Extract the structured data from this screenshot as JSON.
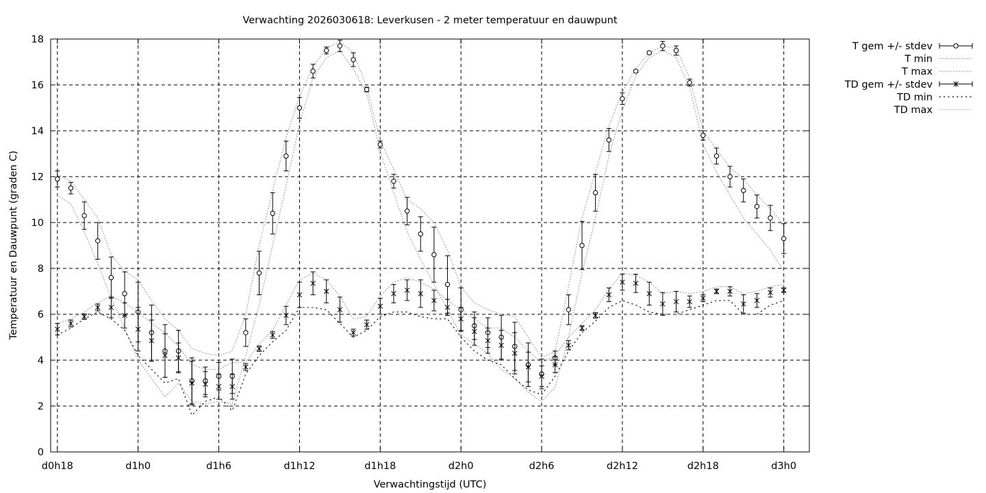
{
  "chart_data": {
    "type": "line",
    "title": "Verwachting 2026030618: Leverkusen - 2 meter temperatuur en dauwpunt",
    "xlabel": "Verwachtingstijd (UTC)",
    "ylabel": "Temperatuur en Dauwpunt (graden C)",
    "xlim": [
      17.5,
      73.9
    ],
    "ylim": [
      0,
      18
    ],
    "grid": true,
    "legend_position": "outside-top-right",
    "x_ticks": [
      {
        "x": 18,
        "label": "d0h18"
      },
      {
        "x": 24,
        "label": "d1h0"
      },
      {
        "x": 30,
        "label": "d1h6"
      },
      {
        "x": 36,
        "label": "d1h12"
      },
      {
        "x": 42,
        "label": "d1h18"
      },
      {
        "x": 48,
        "label": "d2h0"
      },
      {
        "x": 54,
        "label": "d2h6"
      },
      {
        "x": 60,
        "label": "d2h12"
      },
      {
        "x": 66,
        "label": "d2h18"
      },
      {
        "x": 72,
        "label": "d3h0"
      }
    ],
    "y_ticks": [
      0,
      2,
      4,
      6,
      8,
      10,
      12,
      14,
      16,
      18
    ],
    "x": [
      18,
      19,
      20,
      21,
      22,
      23,
      24,
      25,
      26,
      27,
      28,
      29,
      30,
      31,
      32,
      33,
      34,
      35,
      36,
      37,
      38,
      39,
      40,
      41,
      42,
      43,
      44,
      45,
      46,
      47,
      48,
      49,
      50,
      51,
      52,
      53,
      54,
      55,
      56,
      57,
      58,
      59,
      60,
      61,
      62,
      63,
      64,
      65,
      66,
      67,
      68,
      69,
      70,
      71,
      72
    ],
    "series": [
      {
        "name": "T gem +/- stdev",
        "style": "errorbars-circle",
        "color": "#000000",
        "values": [
          11.9,
          11.5,
          10.3,
          9.2,
          7.6,
          6.9,
          6.1,
          5.2,
          4.4,
          4.4,
          3.1,
          3.1,
          3.3,
          3.3,
          5.2,
          7.8,
          10.4,
          12.9,
          15.0,
          16.6,
          17.5,
          17.7,
          17.1,
          15.8,
          13.4,
          11.8,
          10.5,
          9.5,
          8.6,
          7.3,
          6.2,
          5.5,
          5.2,
          5.0,
          4.6,
          3.8,
          3.4,
          4.1,
          6.2,
          9.0,
          11.3,
          13.6,
          15.4,
          16.6,
          17.4,
          17.7,
          17.5,
          16.1,
          13.8,
          12.9,
          12.0,
          11.4,
          10.7,
          10.2,
          9.3
        ],
        "stdev": [
          0.35,
          0.25,
          0.6,
          0.8,
          0.9,
          0.95,
          1.3,
          1.2,
          1.15,
          0.9,
          1.0,
          0.6,
          0.6,
          0.75,
          0.6,
          0.95,
          0.9,
          0.65,
          0.45,
          0.3,
          0.15,
          0.25,
          0.3,
          0.1,
          0.15,
          0.3,
          0.6,
          0.75,
          1.2,
          1.25,
          0.95,
          0.6,
          0.65,
          0.95,
          1.05,
          0.95,
          0.65,
          0.3,
          0.65,
          1.05,
          0.8,
          0.5,
          0.25,
          0.05,
          0.05,
          0.2,
          0.2,
          0.15,
          0.2,
          0.35,
          0.45,
          0.5,
          0.5,
          0.55,
          0.65
        ]
      },
      {
        "name": "T min",
        "style": "dotted",
        "color": "#a8a8a8",
        "values": [
          11.2,
          10.8,
          9.6,
          8.2,
          6.7,
          5.4,
          4.0,
          3.2,
          2.4,
          3.0,
          2.2,
          2.1,
          2.2,
          2.1,
          4.2,
          6.4,
          9.0,
          11.6,
          14.3,
          16.3,
          17.2,
          17.5,
          16.7,
          15.6,
          13.1,
          11.3,
          9.6,
          8.4,
          7.3,
          6.2,
          5.1,
          4.7,
          4.3,
          3.6,
          3.2,
          2.6,
          2.2,
          2.8,
          5.0,
          7.8,
          10.2,
          12.9,
          14.9,
          16.4,
          17.2,
          17.5,
          17.2,
          15.9,
          13.4,
          12.2,
          11.2,
          10.2,
          9.5,
          8.8,
          7.9
        ]
      },
      {
        "name": "T max",
        "style": "dotted",
        "color": "#a8a8a8",
        "values": [
          12.1,
          11.8,
          11.0,
          10.2,
          8.6,
          7.9,
          7.5,
          6.6,
          5.8,
          5.3,
          4.5,
          4.3,
          4.2,
          4.4,
          6.0,
          9.0,
          11.4,
          13.7,
          15.5,
          16.8,
          17.6,
          17.9,
          17.4,
          15.9,
          13.6,
          12.3,
          11.0,
          10.6,
          10.0,
          8.8,
          7.2,
          6.5,
          6.2,
          6.0,
          5.9,
          5.0,
          4.1,
          4.4,
          7.2,
          10.2,
          12.2,
          14.2,
          15.7,
          16.7,
          17.4,
          17.7,
          17.6,
          16.3,
          14.0,
          13.2,
          12.4,
          11.9,
          11.2,
          10.6,
          9.9
        ]
      },
      {
        "name": "TD gem +/- stdev",
        "style": "errorbars-star",
        "color": "#000000",
        "values": [
          5.35,
          5.6,
          5.9,
          6.3,
          6.3,
          5.95,
          5.35,
          4.85,
          4.2,
          4.1,
          3.0,
          2.95,
          2.85,
          2.85,
          3.7,
          4.5,
          5.1,
          5.95,
          6.85,
          7.35,
          7.0,
          6.2,
          5.2,
          5.55,
          6.35,
          6.9,
          7.05,
          6.9,
          6.6,
          6.3,
          5.8,
          5.25,
          4.85,
          4.65,
          4.3,
          3.7,
          3.3,
          3.8,
          4.65,
          5.4,
          5.95,
          6.85,
          7.4,
          7.35,
          6.9,
          6.45,
          6.55,
          6.55,
          6.7,
          7.0,
          7.0,
          6.45,
          6.6,
          6.95,
          7.05
        ],
        "stdev": [
          0.25,
          0.15,
          0.12,
          0.15,
          0.45,
          0.55,
          0.95,
          0.9,
          0.95,
          0.65,
          0.95,
          0.55,
          0.55,
          0.55,
          0.15,
          0.12,
          0.15,
          0.4,
          0.55,
          0.5,
          0.5,
          0.55,
          0.15,
          0.2,
          0.35,
          0.4,
          0.45,
          0.6,
          0.45,
          0.35,
          0.5,
          0.6,
          0.55,
          0.65,
          0.9,
          0.65,
          0.45,
          0.35,
          0.2,
          0.1,
          0.12,
          0.3,
          0.35,
          0.4,
          0.5,
          0.5,
          0.45,
          0.25,
          0.15,
          0.1,
          0.2,
          0.4,
          0.3,
          0.2,
          0.1
        ]
      },
      {
        "name": "TD min",
        "style": "loose-dotted",
        "color": "#000000",
        "values": [
          5.1,
          5.4,
          5.8,
          6.1,
          5.8,
          5.3,
          4.2,
          3.6,
          3.0,
          3.2,
          1.6,
          2.2,
          2.4,
          1.8,
          3.4,
          4.2,
          4.8,
          5.3,
          6.3,
          6.3,
          6.2,
          5.6,
          5.0,
          5.3,
          5.9,
          6.1,
          6.1,
          5.9,
          5.8,
          5.8,
          5.0,
          4.4,
          4.0,
          3.8,
          3.2,
          2.7,
          2.5,
          3.3,
          4.4,
          5.2,
          5.7,
          6.3,
          6.6,
          6.4,
          6.1,
          6.0,
          6.0,
          6.2,
          6.4,
          6.6,
          6.6,
          6.0,
          6.0,
          6.4,
          6.6
        ]
      },
      {
        "name": "TD max",
        "style": "dotted",
        "color": "#a8a8a8",
        "values": [
          5.6,
          5.8,
          6.1,
          6.5,
          6.8,
          6.5,
          6.1,
          5.6,
          5.2,
          4.6,
          3.8,
          3.6,
          3.6,
          3.9,
          3.9,
          4.7,
          5.3,
          6.4,
          7.5,
          7.8,
          7.5,
          6.8,
          5.8,
          5.9,
          6.8,
          7.4,
          7.6,
          7.4,
          7.1,
          6.6,
          6.2,
          5.8,
          5.4,
          5.4,
          5.0,
          4.4,
          3.9,
          4.2,
          5.0,
          5.6,
          6.2,
          7.1,
          7.8,
          7.7,
          7.4,
          6.9,
          7.0,
          6.9,
          7.0,
          7.2,
          7.2,
          6.9,
          7.0,
          7.2,
          7.3
        ]
      }
    ]
  }
}
